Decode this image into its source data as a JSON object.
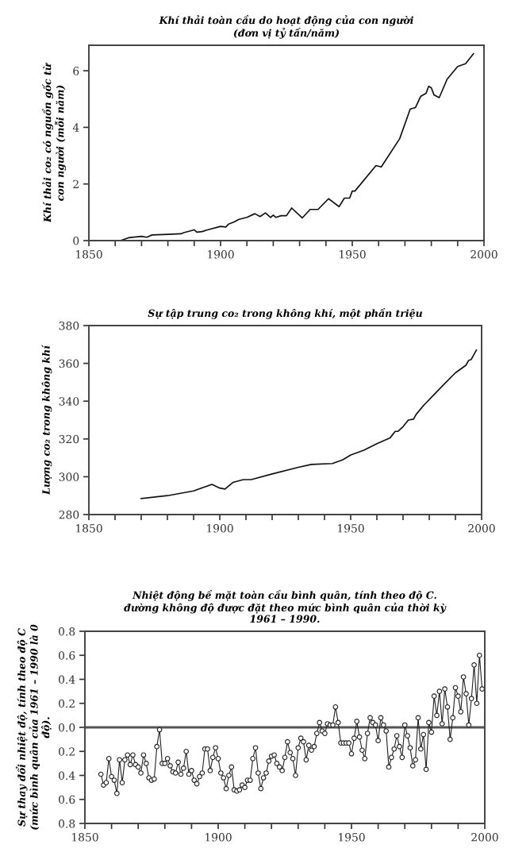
{
  "chart_data": [
    {
      "type": "line",
      "title": "Khí thải toàn cầu do hoạt động của con người\n(đơn vị tỷ tấn/năm)",
      "ylabel": "Khí thải co₂ có nguồn gốc từ\ncon người (mỗi năm)",
      "x": [
        1862,
        1865,
        1870,
        1872,
        1874,
        1880,
        1885,
        1886,
        1890,
        1891,
        1893,
        1895,
        1900,
        1902,
        1903,
        1905,
        1907,
        1910,
        1913,
        1915,
        1917,
        1919,
        1920,
        1921,
        1923,
        1925,
        1927,
        1931,
        1934,
        1937,
        1941,
        1945,
        1947,
        1949,
        1950,
        1951,
        1959,
        1961,
        1968,
        1972,
        1974,
        1976,
        1978,
        1979,
        1980,
        1981,
        1983,
        1986,
        1990,
        1993,
        1996
      ],
      "series": [
        {
          "color": "#111111",
          "values": [
            0,
            0.1,
            0.15,
            0.12,
            0.2,
            0.22,
            0.24,
            0.28,
            0.38,
            0.3,
            0.32,
            0.38,
            0.5,
            0.48,
            0.58,
            0.65,
            0.75,
            0.82,
            0.95,
            0.85,
            0.98,
            0.82,
            0.9,
            0.82,
            0.88,
            0.88,
            1.15,
            0.8,
            1.1,
            1.1,
            1.48,
            1.2,
            1.5,
            1.5,
            1.75,
            1.75,
            2.65,
            2.6,
            3.6,
            4.65,
            4.7,
            5.1,
            5.2,
            5.45,
            5.4,
            5.15,
            5.05,
            5.7,
            6.15,
            6.25,
            6.6
          ]
        }
      ],
      "xlim": [
        1850,
        2000
      ],
      "ylim": [
        0,
        6.9
      ],
      "xticks": [
        1850,
        {
          "value": 1860,
          "label": null
        },
        {
          "value": 1870,
          "label": null
        },
        {
          "value": 1880,
          "label": null
        },
        {
          "value": 1890,
          "label": null
        },
        1900,
        {
          "value": 1910,
          "label": null
        },
        {
          "value": 1920,
          "label": null
        },
        {
          "value": 1930,
          "label": null
        },
        {
          "value": 1940,
          "label": null
        },
        1950,
        {
          "value": 1960,
          "label": null
        },
        {
          "value": 1970,
          "label": null
        },
        {
          "value": 1980,
          "label": null
        },
        {
          "value": 1990,
          "label": null
        },
        2000
      ],
      "yticks": [
        0,
        2,
        4,
        6
      ],
      "grid": false,
      "legend": false,
      "marker": "none",
      "line_style": "solid"
    },
    {
      "type": "line",
      "title": "Sự tập trung co₂ trong không khí, một phần triệu",
      "ylabel": "Lượng co₂ trong không khí",
      "x": [
        1870,
        1880,
        1890,
        1897,
        1900,
        1902,
        1905,
        1909,
        1912,
        1920,
        1930,
        1935,
        1943,
        1947,
        1950,
        1955,
        1960,
        1965,
        1967,
        1968,
        1970,
        1972,
        1974,
        1975,
        1978,
        1985,
        1990,
        1994,
        1995,
        1996,
        1998
      ],
      "series": [
        {
          "color": "#111111",
          "values": [
            288.5,
            290,
            292.5,
            296,
            294,
            293.5,
            297,
            298.5,
            298.5,
            301.5,
            305,
            306.5,
            307,
            309,
            311.5,
            314,
            317.5,
            320.5,
            324,
            324,
            326.5,
            330,
            330.5,
            333,
            338,
            348,
            355,
            359,
            361.5,
            362,
            367
          ]
        }
      ],
      "xlim": [
        1850,
        2000
      ],
      "ylim": [
        280,
        380
      ],
      "xticks": [
        1850,
        {
          "value": 1860,
          "label": null
        },
        {
          "value": 1870,
          "label": null
        },
        {
          "value": 1880,
          "label": null
        },
        {
          "value": 1890,
          "label": null
        },
        1900,
        {
          "value": 1910,
          "label": null
        },
        {
          "value": 1920,
          "label": null
        },
        {
          "value": 1930,
          "label": null
        },
        {
          "value": 1940,
          "label": null
        },
        1950,
        {
          "value": 1960,
          "label": null
        },
        {
          "value": 1970,
          "label": null
        },
        {
          "value": 1980,
          "label": null
        },
        {
          "value": 1990,
          "label": null
        },
        2000
      ],
      "yticks": [
        280,
        300,
        320,
        340,
        360,
        380
      ],
      "grid": false,
      "legend": false,
      "marker": "none",
      "line_style": "solid"
    },
    {
      "type": "line",
      "title": "Nhiệt động bề mặt toàn cầu bình quân, tính theo độ C.\nđường không độ được đặt theo mức bình quân của thời kỳ\n1961 – 1990.",
      "ylabel": "Sự thay đổi nhiệt độ, tính theo độ C\n(mức bình quân của 1961 – 1990 là 0\nđộ).",
      "x": [
        1856,
        1857,
        1858,
        1859,
        1860,
        1861,
        1862,
        1863,
        1864,
        1865,
        1866,
        1867,
        1868,
        1869,
        1870,
        1871,
        1872,
        1873,
        1874,
        1875,
        1876,
        1877,
        1878,
        1879,
        1880,
        1881,
        1882,
        1883,
        1884,
        1885,
        1886,
        1887,
        1888,
        1889,
        1890,
        1891,
        1892,
        1893,
        1894,
        1895,
        1896,
        1897,
        1898,
        1899,
        1900,
        1901,
        1902,
        1903,
        1904,
        1905,
        1906,
        1907,
        1908,
        1909,
        1910,
        1911,
        1912,
        1913,
        1914,
        1915,
        1916,
        1917,
        1918,
        1919,
        1920,
        1921,
        1922,
        1923,
        1924,
        1925,
        1926,
        1927,
        1928,
        1929,
        1930,
        1931,
        1932,
        1933,
        1934,
        1935,
        1936,
        1937,
        1938,
        1939,
        1940,
        1941,
        1942,
        1943,
        1944,
        1945,
        1946,
        1947,
        1948,
        1949,
        1950,
        1951,
        1952,
        1953,
        1954,
        1955,
        1956,
        1957,
        1958,
        1959,
        1960,
        1961,
        1962,
        1963,
        1964,
        1965,
        1966,
        1967,
        1968,
        1969,
        1970,
        1971,
        1972,
        1973,
        1974,
        1975,
        1976,
        1977,
        1978,
        1979,
        1980,
        1981,
        1982,
        1983,
        1984,
        1985,
        1986,
        1987,
        1988,
        1989,
        1990,
        1991,
        1992,
        1993,
        1994,
        1995,
        1996,
        1997,
        1998,
        1999
      ],
      "series": [
        {
          "color": "#222222",
          "values": [
            -0.39,
            -0.48,
            -0.46,
            -0.26,
            -0.41,
            -0.44,
            -0.55,
            -0.27,
            -0.46,
            -0.27,
            -0.23,
            -0.31,
            -0.23,
            -0.31,
            -0.33,
            -0.38,
            -0.23,
            -0.3,
            -0.42,
            -0.44,
            -0.43,
            -0.16,
            -0.02,
            -0.3,
            -0.3,
            -0.26,
            -0.32,
            -0.37,
            -0.38,
            -0.29,
            -0.39,
            -0.34,
            -0.2,
            -0.39,
            -0.36,
            -0.44,
            -0.47,
            -0.41,
            -0.38,
            -0.18,
            -0.18,
            -0.36,
            -0.25,
            -0.17,
            -0.26,
            -0.38,
            -0.42,
            -0.51,
            -0.4,
            -0.33,
            -0.52,
            -0.53,
            -0.52,
            -0.48,
            -0.5,
            -0.44,
            -0.44,
            -0.26,
            -0.17,
            -0.38,
            -0.51,
            -0.42,
            -0.38,
            -0.28,
            -0.24,
            -0.23,
            -0.3,
            -0.33,
            -0.36,
            -0.25,
            -0.12,
            -0.21,
            -0.26,
            -0.4,
            -0.17,
            -0.09,
            -0.12,
            -0.27,
            -0.15,
            -0.19,
            -0.16,
            -0.05,
            0.04,
            -0.03,
            -0.05,
            0.03,
            0.02,
            0.02,
            0.17,
            0.04,
            -0.13,
            -0.13,
            -0.13,
            -0.13,
            -0.22,
            -0.09,
            0.05,
            -0.08,
            -0.19,
            -0.26,
            -0.05,
            0.08,
            0.04,
            0.02,
            -0.11,
            0.08,
            0.02,
            -0.03,
            -0.33,
            -0.25,
            -0.18,
            -0.07,
            -0.16,
            -0.25,
            0.02,
            -0.07,
            -0.17,
            -0.32,
            -0.27,
            0.08,
            -0.18,
            -0.06,
            -0.35,
            0.04,
            -0.04,
            0.26,
            0.1,
            0.3,
            0.03,
            0.32,
            0.17,
            -0.1,
            0.08,
            0.33,
            0.26,
            0.13,
            0.42,
            0.28,
            0.02,
            0.24,
            0.52,
            0.2,
            0.6,
            0.32
          ]
        }
      ],
      "xlim": [
        1850,
        2000
      ],
      "ylim": [
        -0.8,
        0.8
      ],
      "xticks": [
        1850,
        {
          "value": 1860,
          "label": null
        },
        {
          "value": 1870,
          "label": null
        },
        {
          "value": 1880,
          "label": null
        },
        {
          "value": 1890,
          "label": null
        },
        1900,
        {
          "value": 1910,
          "label": null
        },
        {
          "value": 1920,
          "label": null
        },
        {
          "value": 1930,
          "label": null
        },
        {
          "value": 1940,
          "label": null
        },
        1950,
        {
          "value": 1960,
          "label": null
        },
        {
          "value": 1970,
          "label": null
        },
        {
          "value": 1980,
          "label": null
        },
        {
          "value": 1990,
          "label": null
        },
        2000
      ],
      "yticks": [
        {
          "value": -0.8,
          "label": "0.8"
        },
        {
          "value": -0.6,
          "label": "0.6"
        },
        {
          "value": -0.4,
          "label": "0.4"
        },
        {
          "value": -0.2,
          "label": "0.2"
        },
        {
          "value": 0,
          "label": "0.0"
        },
        {
          "value": 0.2,
          "label": "0.2"
        },
        {
          "value": 0.4,
          "label": "0.4"
        },
        {
          "value": 0.6,
          "label": "0.6"
        },
        {
          "value": 0.8,
          "label": "0.8"
        }
      ],
      "ref_lines": [
        {
          "axis": "y",
          "value": 0,
          "color": "#555555",
          "line_style": "solid"
        }
      ],
      "grid": false,
      "legend": false,
      "marker": "circle",
      "line_style": "solid"
    }
  ]
}
